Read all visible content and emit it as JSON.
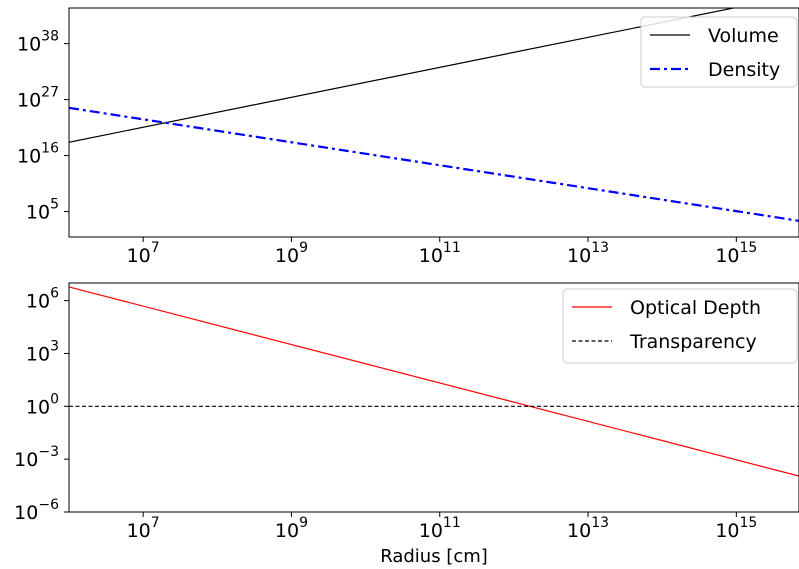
{
  "chart_data": [
    {
      "type": "line",
      "title": "",
      "xlabel": "",
      "ylabel": "",
      "x_scale": "log",
      "y_scale": "log",
      "xlim": [
        1000000,
        7000000000000000.0
      ],
      "ylim": [
        1,
        1e+45
      ],
      "x_ticks": [
        {
          "value": 10000000,
          "base": "10",
          "exp": "7"
        },
        {
          "value": 1000000000,
          "base": "10",
          "exp": "9"
        },
        {
          "value": 100000000000,
          "base": "10",
          "exp": "11"
        },
        {
          "value": 10000000000000,
          "base": "10",
          "exp": "13"
        },
        {
          "value": 1000000000000000,
          "base": "10",
          "exp": "15"
        }
      ],
      "y_ticks": [
        {
          "value": 100000,
          "base": "10",
          "exp": "5"
        },
        {
          "value": 1e+16,
          "base": "10",
          "exp": "16"
        },
        {
          "value": 1e+27,
          "base": "10",
          "exp": "27"
        },
        {
          "value": 1e+38,
          "base": "10",
          "exp": "38"
        }
      ],
      "grid": false,
      "legend_position": "top-right",
      "series": [
        {
          "name": "Volume",
          "color": "#000000",
          "style": "solid",
          "x": [
            1000000,
            7000000000000000.0
          ],
          "y": [
            4.2e+18,
            4e+47
          ]
        },
        {
          "name": "Density",
          "color": "#0000ff",
          "style": "dash-dot",
          "x": [
            1000000,
            7000000000000000.0
          ],
          "y": [
            2.4e+25,
            1500.0
          ]
        }
      ]
    },
    {
      "type": "line",
      "title": "",
      "xlabel": "Radius [cm]",
      "ylabel": "",
      "x_scale": "log",
      "y_scale": "log",
      "xlim": [
        1000000,
        7000000000000000.0
      ],
      "ylim": [
        1e-06,
        10000000.0
      ],
      "x_ticks": [
        {
          "value": 10000000,
          "base": "10",
          "exp": "7"
        },
        {
          "value": 1000000000,
          "base": "10",
          "exp": "9"
        },
        {
          "value": 100000000000,
          "base": "10",
          "exp": "11"
        },
        {
          "value": 10000000000000,
          "base": "10",
          "exp": "13"
        },
        {
          "value": 1000000000000000,
          "base": "10",
          "exp": "15"
        }
      ],
      "y_ticks": [
        {
          "value": 1e-06,
          "base": "10",
          "exp": "−6"
        },
        {
          "value": 0.001,
          "base": "10",
          "exp": "−3"
        },
        {
          "value": 1,
          "base": "10",
          "exp": "0"
        },
        {
          "value": 1000,
          "base": "10",
          "exp": "3"
        },
        {
          "value": 1000000,
          "base": "10",
          "exp": "6"
        }
      ],
      "grid": false,
      "legend_position": "top-right",
      "series": [
        {
          "name": "Optical Depth",
          "color": "#ff0000",
          "style": "solid",
          "x": [
            1000000,
            7000000000000000.0
          ],
          "y": [
            6000000.0,
            0.00011
          ]
        },
        {
          "name": "Transparency",
          "color": "#000000",
          "style": "dashed",
          "x": [
            1000000,
            7000000000000000.0
          ],
          "y": [
            1,
            1
          ]
        }
      ]
    }
  ]
}
